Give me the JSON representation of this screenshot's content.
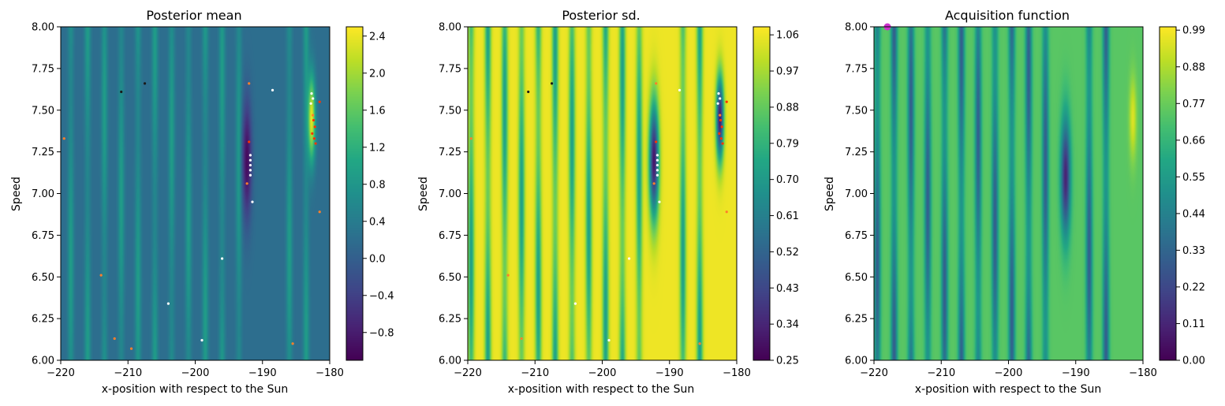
{
  "chart_data": [
    {
      "type": "heatmap",
      "title": "Posterior mean",
      "xlabel": "x-position with respect to the Sun",
      "ylabel": "Speed",
      "xlim": [
        -220,
        -180
      ],
      "ylim": [
        6.0,
        8.0
      ],
      "x_ticks": [
        "−220",
        "−210",
        "−200",
        "−190",
        "−180"
      ],
      "y_ticks": [
        "6.00",
        "6.25",
        "6.50",
        "6.75",
        "7.00",
        "7.25",
        "7.50",
        "7.75",
        "8.00"
      ],
      "colormap": "viridis",
      "colorbar": {
        "range": [
          -1.1,
          2.5
        ],
        "ticks": [
          "−0.8",
          "−0.4",
          "0.0",
          "0.4",
          "0.8",
          "1.2",
          "1.6",
          "2.0",
          "2.4"
        ],
        "tick_values": [
          -0.8,
          -0.4,
          0.0,
          0.4,
          0.8,
          1.2,
          1.6,
          2.0,
          2.4
        ]
      },
      "features": {
        "background": 0.2,
        "stripes_x": [
          -218.5,
          -216,
          -213.5,
          -211,
          -208.5,
          -206,
          -203.5,
          -201,
          -198.5,
          -196,
          -193.5,
          -186,
          -183.5
        ],
        "stripe_value": 0.9,
        "trough": {
          "x": -192.3,
          "y": 7.2,
          "value": -1.0
        },
        "peak": {
          "x": -182.7,
          "y": 7.45,
          "value": 2.4
        }
      },
      "points": [
        {
          "x": -211,
          "y": 7.61,
          "color": "#1a1a1a"
        },
        {
          "x": -207.5,
          "y": 7.66,
          "color": "#1a1a1a"
        },
        {
          "x": -188.5,
          "y": 7.62,
          "color": "#ffffff"
        },
        {
          "x": -192,
          "y": 7.66,
          "color": "#ff7f2a"
        },
        {
          "x": -219.5,
          "y": 7.33,
          "color": "#ff7f2a"
        },
        {
          "x": -214,
          "y": 6.51,
          "color": "#ff7f2a"
        },
        {
          "x": -204,
          "y": 6.34,
          "color": "#ffffff"
        },
        {
          "x": -196,
          "y": 6.61,
          "color": "#ffffff"
        },
        {
          "x": -199,
          "y": 6.12,
          "color": "#ffffff"
        },
        {
          "x": -191.5,
          "y": 6.95,
          "color": "#ffffff"
        },
        {
          "x": -181.5,
          "y": 6.89,
          "color": "#ff7f2a"
        },
        {
          "x": -212,
          "y": 6.13,
          "color": "#ff7f2a"
        },
        {
          "x": -209.5,
          "y": 6.07,
          "color": "#ff7f2a"
        },
        {
          "x": -185.5,
          "y": 6.1,
          "color": "#ff7f2a"
        },
        {
          "x": -192,
          "y": 7.31,
          "color": "#ff3300"
        },
        {
          "x": -192.3,
          "y": 7.06,
          "color": "#ff7f2a"
        },
        {
          "x": -191.8,
          "y": 7.2,
          "color": "#ffffff"
        },
        {
          "x": -191.8,
          "y": 7.17,
          "color": "#ffffff"
        },
        {
          "x": -191.8,
          "y": 7.14,
          "color": "#ffffff"
        },
        {
          "x": -191.8,
          "y": 7.11,
          "color": "#ffffff"
        },
        {
          "x": -191.8,
          "y": 7.23,
          "color": "#ffffff"
        },
        {
          "x": -182.7,
          "y": 7.6,
          "color": "#ffffff"
        },
        {
          "x": -182.5,
          "y": 7.57,
          "color": "#ffffff"
        },
        {
          "x": -182.8,
          "y": 7.54,
          "color": "#ffffff"
        },
        {
          "x": -182.4,
          "y": 7.44,
          "color": "#ff3300"
        },
        {
          "x": -182.2,
          "y": 7.4,
          "color": "#ff3300"
        },
        {
          "x": -182.6,
          "y": 7.36,
          "color": "#ff3300"
        },
        {
          "x": -182.3,
          "y": 7.33,
          "color": "#ff3300"
        },
        {
          "x": -182.1,
          "y": 7.3,
          "color": "#ff3300"
        },
        {
          "x": -182.5,
          "y": 7.47,
          "color": "#ff7f2a"
        },
        {
          "x": -181.5,
          "y": 7.55,
          "color": "#ff3300"
        }
      ]
    },
    {
      "type": "heatmap",
      "title": "Posterior sd.",
      "xlabel": "x-position with respect to the Sun",
      "ylabel": "Speed",
      "xlim": [
        -220,
        -180
      ],
      "ylim": [
        6.0,
        8.0
      ],
      "x_ticks": [
        "−220",
        "−210",
        "−200",
        "−190",
        "−180"
      ],
      "y_ticks": [
        "6.00",
        "6.25",
        "6.50",
        "6.75",
        "7.00",
        "7.25",
        "7.50",
        "7.75",
        "8.00"
      ],
      "colormap": "viridis",
      "colorbar": {
        "range": [
          0.25,
          1.08
        ],
        "ticks": [
          "0.25",
          "0.34",
          "0.43",
          "0.52",
          "0.61",
          "0.70",
          "0.79",
          "0.88",
          "0.97",
          "1.06"
        ],
        "tick_values": [
          0.25,
          0.34,
          0.43,
          0.52,
          0.61,
          0.7,
          0.79,
          0.88,
          0.97,
          1.06
        ]
      },
      "features": {
        "background": 1.06,
        "stripes_x": [
          -219.5,
          -217,
          -214.5,
          -212,
          -209.5,
          -207,
          -204.5,
          -202,
          -199.5,
          -197,
          -194.5,
          -188,
          -185.5
        ],
        "stripe_value": 0.72,
        "trough": {
          "x": -192.3,
          "y": 7.2,
          "value": 0.3
        },
        "peak": {
          "x": -182.5,
          "y": 7.45,
          "value": 0.3
        }
      },
      "points": [
        {
          "x": -211,
          "y": 7.61,
          "color": "#1a1a1a"
        },
        {
          "x": -207.5,
          "y": 7.66,
          "color": "#1a1a1a"
        },
        {
          "x": -188.5,
          "y": 7.62,
          "color": "#ffffff"
        },
        {
          "x": -192,
          "y": 7.66,
          "color": "#ff7f2a"
        },
        {
          "x": -219.5,
          "y": 7.33,
          "color": "#ff7f2a"
        },
        {
          "x": -214,
          "y": 6.51,
          "color": "#ff7f2a"
        },
        {
          "x": -204,
          "y": 6.34,
          "color": "#ffffff"
        },
        {
          "x": -196,
          "y": 6.61,
          "color": "#ffffff"
        },
        {
          "x": -199,
          "y": 6.12,
          "color": "#ffffff"
        },
        {
          "x": -191.5,
          "y": 6.95,
          "color": "#ffffff"
        },
        {
          "x": -181.5,
          "y": 6.89,
          "color": "#ff7f2a"
        },
        {
          "x": -212,
          "y": 6.13,
          "color": "#ff7f2a"
        },
        {
          "x": -185.5,
          "y": 6.1,
          "color": "#ff7f2a"
        },
        {
          "x": -192,
          "y": 7.31,
          "color": "#ff3300"
        },
        {
          "x": -192.3,
          "y": 7.06,
          "color": "#ff7f2a"
        },
        {
          "x": -191.8,
          "y": 7.2,
          "color": "#ffffff"
        },
        {
          "x": -191.8,
          "y": 7.17,
          "color": "#ffffff"
        },
        {
          "x": -191.8,
          "y": 7.14,
          "color": "#ffffff"
        },
        {
          "x": -191.8,
          "y": 7.11,
          "color": "#ffffff"
        },
        {
          "x": -191.8,
          "y": 7.23,
          "color": "#ffffff"
        },
        {
          "x": -182.7,
          "y": 7.6,
          "color": "#ffffff"
        },
        {
          "x": -182.5,
          "y": 7.57,
          "color": "#ffffff"
        },
        {
          "x": -182.8,
          "y": 7.54,
          "color": "#ffffff"
        },
        {
          "x": -182.4,
          "y": 7.44,
          "color": "#ff3300"
        },
        {
          "x": -182.2,
          "y": 7.4,
          "color": "#ff3300"
        },
        {
          "x": -182.6,
          "y": 7.36,
          "color": "#ff3300"
        },
        {
          "x": -182.3,
          "y": 7.33,
          "color": "#ff3300"
        },
        {
          "x": -182.1,
          "y": 7.3,
          "color": "#ff3300"
        },
        {
          "x": -182.5,
          "y": 7.47,
          "color": "#ff7f2a"
        },
        {
          "x": -181.5,
          "y": 7.55,
          "color": "#ff3300"
        }
      ]
    },
    {
      "type": "heatmap",
      "title": "Acquisition function",
      "xlabel": "x-position with respect to the Sun",
      "ylabel": "Speed",
      "xlim": [
        -220,
        -180
      ],
      "ylim": [
        6.0,
        8.0
      ],
      "x_ticks": [
        "−220",
        "−210",
        "−200",
        "−190",
        "−180"
      ],
      "y_ticks": [
        "6.00",
        "6.25",
        "6.50",
        "6.75",
        "7.00",
        "7.25",
        "7.50",
        "7.75",
        "8.00"
      ],
      "colormap": "viridis",
      "colorbar": {
        "range": [
          0.0,
          1.0
        ],
        "ticks": [
          "0.00",
          "0.11",
          "0.22",
          "0.33",
          "0.44",
          "0.55",
          "0.66",
          "0.77",
          "0.88",
          "0.99"
        ],
        "tick_values": [
          0.0,
          0.11,
          0.22,
          0.33,
          0.44,
          0.55,
          0.66,
          0.77,
          0.88,
          0.99
        ]
      },
      "features": {
        "background": 0.74,
        "stripes_x": [
          -219.5,
          -217,
          -214.5,
          -212,
          -209.5,
          -207,
          -204.5,
          -202,
          -199.5,
          -197,
          -194.5,
          -188,
          -185.5
        ],
        "stripe_value": 0.3,
        "trough": {
          "x": -191.5,
          "y": 7.1,
          "value": 0.1
        },
        "peak": {
          "x": -181.5,
          "y": 7.45,
          "value": 0.95
        }
      },
      "marker": {
        "x": -218,
        "y": 8.0,
        "color": "#cc33cc"
      }
    }
  ]
}
